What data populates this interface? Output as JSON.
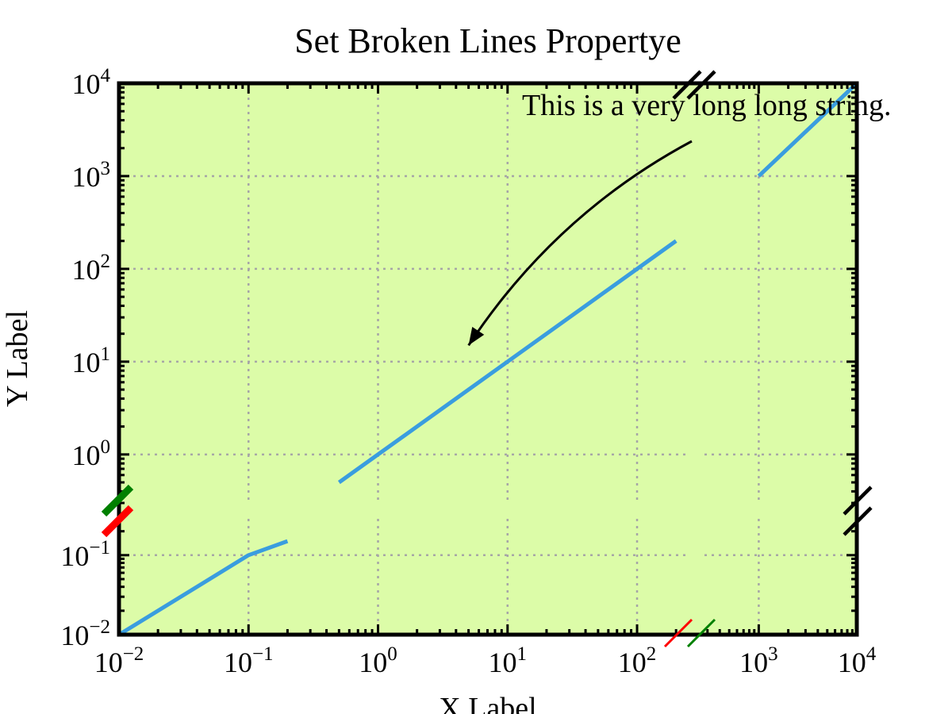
{
  "chart_data": {
    "type": "line",
    "title": "Set Broken Lines Propertye",
    "xlabel": "X Label",
    "ylabel": "Y Label",
    "xscale": "log",
    "yscale": "log",
    "xlim": [
      0.01,
      10000
    ],
    "ylim": [
      0.01,
      10000
    ],
    "grid": true,
    "x_ticks": [
      {
        "value": 0.01,
        "base": "10",
        "exp": "−2"
      },
      {
        "value": 0.1,
        "base": "10",
        "exp": "−1"
      },
      {
        "value": 1,
        "base": "10",
        "exp": "0"
      },
      {
        "value": 10,
        "base": "10",
        "exp": "1"
      },
      {
        "value": 100,
        "base": "10",
        "exp": "2"
      },
      {
        "value": 1000,
        "base": "10",
        "exp": "3"
      },
      {
        "value": 10000,
        "base": "10",
        "exp": "4"
      }
    ],
    "y_ticks": [
      {
        "value": 0.01,
        "base": "10",
        "exp": "−2"
      },
      {
        "value": 0.1,
        "base": "10",
        "exp": "−1"
      },
      {
        "value": 1,
        "base": "10",
        "exp": "0"
      },
      {
        "value": 10,
        "base": "10",
        "exp": "1"
      },
      {
        "value": 100,
        "base": "10",
        "exp": "2"
      },
      {
        "value": 1000,
        "base": "10",
        "exp": "3"
      },
      {
        "value": 10000,
        "base": "10",
        "exp": "4"
      }
    ],
    "series": [
      {
        "color": "#3a9ddf",
        "x": [
          0.01,
          0.1,
          0.2,
          0.5,
          1,
          10,
          100,
          200,
          1000,
          10000
        ],
        "y": [
          0.01,
          0.1,
          0.15,
          0.5,
          1,
          10,
          100,
          200,
          1000,
          10000
        ]
      }
    ],
    "annotation": {
      "text": "This is a very long long string.",
      "arrow_target": {
        "x": 5,
        "y": 15
      }
    },
    "colors": {
      "background": "#dcfca8",
      "grid": "#a6a6a6",
      "axes": "#000000",
      "break_x_primary": "#ff0000",
      "break_x_secondary": "#008000",
      "break_y_primary": "#ff0000",
      "break_y_secondary": "#008000",
      "break_default": "#000000"
    }
  }
}
